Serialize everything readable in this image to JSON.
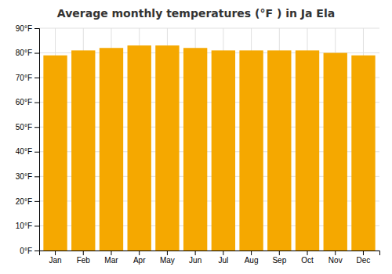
{
  "chart_data": {
    "type": "bar",
    "title": "Average monthly temperatures (°F ) in Ja Ela",
    "categories": [
      "Jan",
      "Feb",
      "Mar",
      "Apr",
      "May",
      "Jun",
      "Jul",
      "Aug",
      "Sep",
      "Oct",
      "Nov",
      "Dec"
    ],
    "values": [
      79,
      81,
      82,
      83,
      83,
      82,
      81,
      81,
      81,
      81,
      80,
      79
    ],
    "color": "#F5A800",
    "ylim": [
      0,
      90
    ],
    "yticks": [
      {
        "value": 0,
        "label": "0°F"
      },
      {
        "value": 10,
        "label": "10°F"
      },
      {
        "value": 20,
        "label": "20°F"
      },
      {
        "value": 30,
        "label": "30°F"
      },
      {
        "value": 40,
        "label": "40°F"
      },
      {
        "value": 50,
        "label": "50°F"
      },
      {
        "value": 60,
        "label": "60°F"
      },
      {
        "value": 70,
        "label": "70°F"
      },
      {
        "value": 80,
        "label": "80°F"
      },
      {
        "value": 90,
        "label": "90°F"
      }
    ],
    "grid": true
  }
}
